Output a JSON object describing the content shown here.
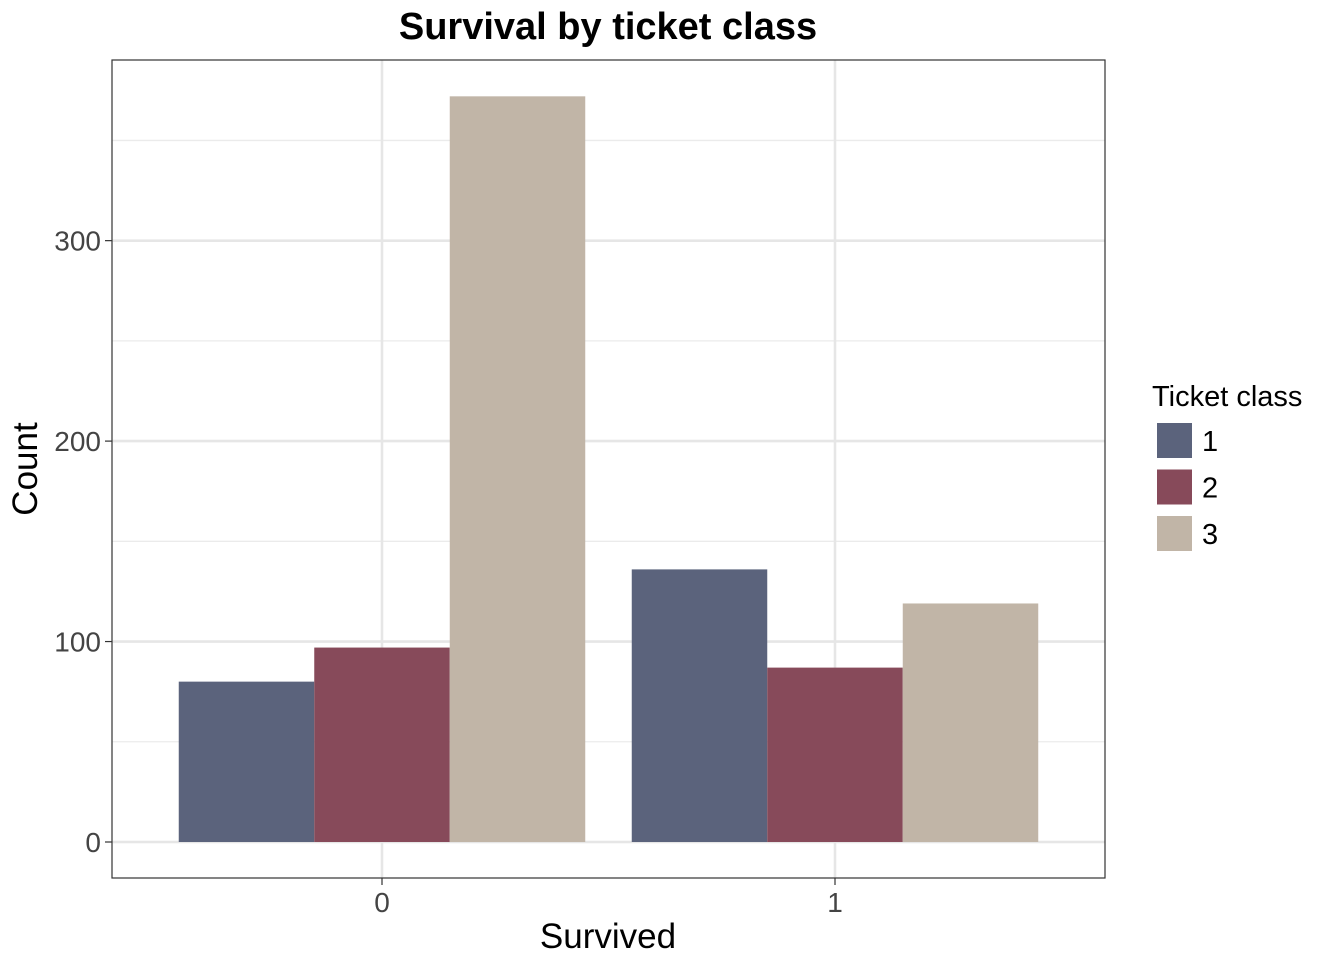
{
  "chart_data": {
    "type": "bar",
    "title": "Survival by ticket class",
    "xlabel": "Survived",
    "ylabel": "Count",
    "categories": [
      "0",
      "1"
    ],
    "yticks": [
      0,
      100,
      200,
      300
    ],
    "ylim": [
      -18,
      390
    ],
    "grid": true,
    "legend": {
      "title": "Ticket class",
      "position": "right"
    },
    "series": [
      {
        "name": "1",
        "color": "#5b637c",
        "values": [
          80,
          136
        ]
      },
      {
        "name": "2",
        "color": "#874a5a",
        "values": [
          97,
          87
        ]
      },
      {
        "name": "3",
        "color": "#c1b5a7",
        "values": [
          372,
          119
        ]
      }
    ]
  }
}
